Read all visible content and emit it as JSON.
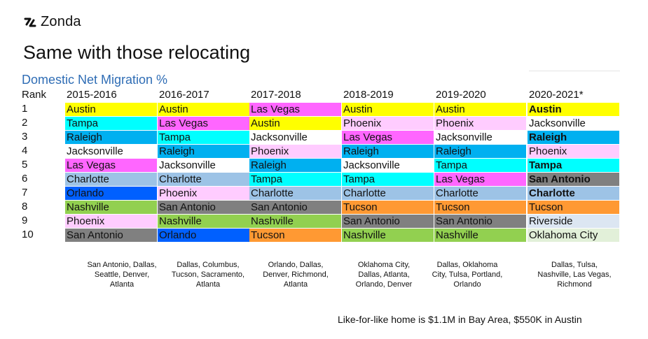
{
  "brand": {
    "name": "Zonda"
  },
  "title": "Same with those relocating",
  "subtitle": "Domestic Net Migration %",
  "rank_label": "Rank",
  "years": [
    "2015-2016",
    "2016-2017",
    "2017-2018",
    "2018-2019",
    "2019-2020",
    "2020-2021*"
  ],
  "ranks": [
    "1",
    "2",
    "3",
    "4",
    "5",
    "6",
    "7",
    "8",
    "9",
    "10"
  ],
  "columns": [
    [
      "Austin",
      "Tampa",
      "Raleigh",
      "Jacksonville",
      "Las Vegas",
      "Charlotte",
      "Orlando",
      "Nashville",
      "Phoenix",
      "San Antonio"
    ],
    [
      "Austin",
      "Las Vegas",
      "Tampa",
      "Raleigh",
      "Jacksonville",
      "Charlotte",
      "Phoenix",
      "San Antonio",
      "Nashville",
      "Orlando"
    ],
    [
      "Las Vegas",
      "Austin",
      "Jacksonville",
      "Phoenix",
      "Raleigh",
      "Tampa",
      "Charlotte",
      "San Antonio",
      "Nashville",
      "Tucson"
    ],
    [
      "Austin",
      "Phoenix",
      "Las Vegas",
      "Raleigh",
      "Jacksonville",
      "Tampa",
      "Charlotte",
      "Tucson",
      "San Antonio",
      "Nashville"
    ],
    [
      "Austin",
      "Phoenix",
      "Jacksonville",
      "Raleigh",
      "Tampa",
      "Las Vegas",
      "Charlotte",
      "Tucson",
      "San Antonio",
      "Nashville"
    ],
    [
      "Austin",
      "Jacksonville",
      "Raleigh",
      "Phoenix",
      "Tampa",
      "San Antonio",
      "Charlotte",
      "Tucson",
      "Riverside",
      "Oklahoma City"
    ]
  ],
  "bold_cells": [
    "5-0",
    "5-2",
    "5-4",
    "5-5",
    "5-6"
  ],
  "city_colors": {
    "Austin": "#ffff00",
    "Tampa": "#00ffff",
    "Raleigh": "#00b0f0",
    "Jacksonville": "#ffffff",
    "Las Vegas": "#ff66ff",
    "Charlotte": "#9dc3e6",
    "Orlando": "#0060ff",
    "Nashville": "#92d050",
    "Phoenix": "#ffccff",
    "San Antonio": "#808080",
    "Tucson": "#ff9933",
    "Riverside": "#dce6f2",
    "Oklahoma City": "#e2f0d9"
  },
  "notes": [
    "San Antonio, Dallas, Seattle, Denver, Atlanta",
    "Dallas, Columbus, Tucson, Sacramento, Atlanta",
    "Orlando, Dallas, Denver, Richmond, Atlanta",
    "Oklahoma City, Dallas, Atlanta, Orlando, Denver",
    "Dallas, Oklahoma City, Tulsa, Portland, Orlando",
    "Dallas, Tulsa, Nashville, Las Vegas, Richmond"
  ],
  "footer": "Like-for-like home is $1.1M in Bay Area, $550K in Austin"
}
